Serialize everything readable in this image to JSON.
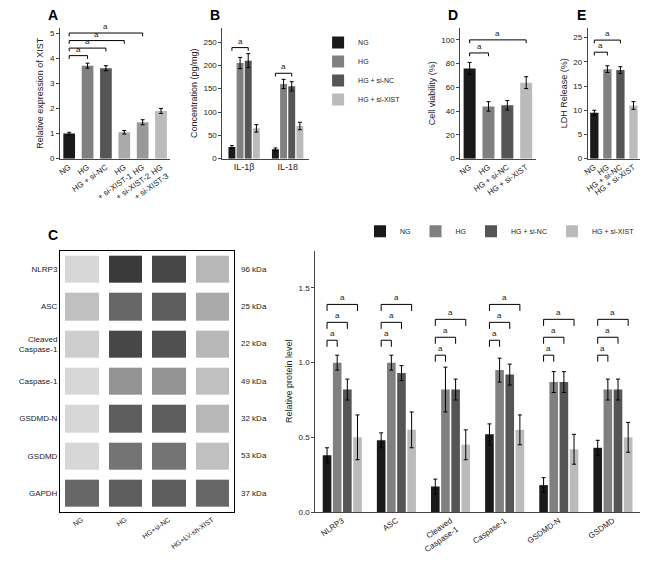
{
  "chart_data": [
    {
      "type": "bar",
      "title": "A",
      "ylabel": "Relative expression of XIST",
      "categories": [
        "NG",
        "HG",
        "HG + si-NC",
        "HG\n+ si-XIST-1",
        "HG\n+ si-XIST-2",
        "HG\n+ si-XIST-3"
      ],
      "values": [
        1.0,
        3.7,
        3.6,
        1.05,
        1.45,
        1.9
      ],
      "errors": [
        0.05,
        0.1,
        0.1,
        0.07,
        0.1,
        0.1
      ],
      "colors": [
        "#1a1a1a",
        "#808080",
        "#555555",
        "#aaaaaa",
        "#999999",
        "#bbbbbb"
      ],
      "ylim": [
        0,
        5.2
      ],
      "yticks": [
        0,
        1,
        2,
        3,
        4,
        5
      ],
      "grid": false,
      "brackets": [
        {
          "x1": 0,
          "x2": 1,
          "y": 4.1,
          "label": "a"
        },
        {
          "x1": 0,
          "x2": 2,
          "y": 4.4,
          "label": "a"
        },
        {
          "x1": 0,
          "x2": 3,
          "y": 4.7,
          "label": "a"
        },
        {
          "x1": 0,
          "x2": 4,
          "y": 5.0,
          "label": "a"
        }
      ]
    },
    {
      "type": "bar",
      "title": "B",
      "ylabel": "Concentration (pg/mg)",
      "categories": [
        "IL-1β",
        "IL-18"
      ],
      "series": [
        {
          "name": "NG",
          "color": "#1a1a1a",
          "values": [
            25,
            20
          ],
          "errors": [
            3,
            3
          ]
        },
        {
          "name": "HG",
          "color": "#808080",
          "values": [
            205,
            160
          ],
          "errors": [
            12,
            10
          ]
        },
        {
          "name": "HG + si-NC",
          "color": "#555555",
          "values": [
            210,
            155
          ],
          "errors": [
            15,
            10
          ]
        },
        {
          "name": "HG + si-XIST",
          "color": "#bbbbbb",
          "values": [
            65,
            70
          ],
          "errors": [
            8,
            8
          ]
        }
      ],
      "ylim": [
        0,
        280
      ],
      "yticks": [
        0,
        50,
        100,
        150,
        200,
        250
      ],
      "grid": false,
      "legend": "right",
      "brackets": [
        {
          "category": 0,
          "pairs": [
            [
              0,
              2
            ]
          ],
          "ys": [
            238
          ],
          "labels": [
            "a"
          ]
        },
        {
          "category": 1,
          "pairs": [
            [
              0,
              2
            ]
          ],
          "ys": [
            183
          ],
          "labels": [
            "a"
          ]
        }
      ]
    },
    {
      "type": "bar",
      "title": "D",
      "ylabel": "Cell viability (%)",
      "categories": [
        "NG",
        "HG",
        "HG + si-NC",
        "HG + si-XIST"
      ],
      "values": [
        76,
        44,
        45,
        64
      ],
      "errors": [
        5,
        4,
        4,
        5
      ],
      "colors": [
        "#1a1a1a",
        "#808080",
        "#555555",
        "#bbbbbb"
      ],
      "ylim": [
        0,
        110
      ],
      "yticks": [
        0,
        20,
        40,
        60,
        80,
        100
      ],
      "grid": false,
      "brackets": [
        {
          "x1": 0,
          "x2": 1,
          "y": 89,
          "label": "a"
        },
        {
          "x1": 0,
          "x2": 3,
          "y": 100,
          "label": "a"
        }
      ]
    },
    {
      "type": "bar",
      "title": "E",
      "ylabel": "LDH Release (%)",
      "categories": [
        "NG",
        "HG",
        "HG + si-NC",
        "HG + si-XIST"
      ],
      "values": [
        9.5,
        18.5,
        18.3,
        11.0
      ],
      "errors": [
        0.5,
        0.7,
        0.7,
        0.8
      ],
      "colors": [
        "#1a1a1a",
        "#808080",
        "#555555",
        "#bbbbbb"
      ],
      "ylim": [
        0,
        27
      ],
      "yticks": [
        0,
        5,
        10,
        15,
        20,
        25
      ],
      "grid": false,
      "brackets": [
        {
          "x1": 0,
          "x2": 1,
          "y": 22,
          "label": "a"
        },
        {
          "x1": 0,
          "x2": 2,
          "y": 24.5,
          "label": "a"
        }
      ]
    },
    {
      "type": "heatmap",
      "title": "C",
      "categories": [
        "NG",
        "HG",
        "HG+si-NC",
        "HG+LV-sh-XIST"
      ],
      "rows": [
        "NLRP3",
        "ASC",
        "Cleaved\nCaspase-1",
        "Caspase-1",
        "GSDMD-N",
        "GSDMD",
        "GAPDH"
      ],
      "kDa": [
        "96 kDa",
        "25 kDa",
        "22 kDa",
        "49 kDa",
        "32 kDa",
        "53 kDa",
        "37 kDa"
      ],
      "cells": [
        [
          0.18,
          0.88,
          0.82,
          0.32
        ],
        [
          0.28,
          0.68,
          0.72,
          0.38
        ],
        [
          0.22,
          0.82,
          0.78,
          0.32
        ],
        [
          0.18,
          0.48,
          0.48,
          0.28
        ],
        [
          0.18,
          0.72,
          0.72,
          0.32
        ],
        [
          0.18,
          0.62,
          0.62,
          0.28
        ],
        [
          0.68,
          0.72,
          0.72,
          0.68
        ]
      ],
      "zlim": [
        0,
        1
      ],
      "grid": false
    },
    {
      "type": "bar",
      "ylabel": "Relative protein level",
      "categories": [
        "NLRP3",
        "ASC",
        "Cleaved\nCaspase-1",
        "Caspase-1",
        "GSDMD-N",
        "GSDMD"
      ],
      "series": [
        {
          "name": "NG",
          "color": "#1a1a1a",
          "values": [
            0.38,
            0.48,
            0.17,
            0.52,
            0.18,
            0.43
          ],
          "errors": [
            0.05,
            0.05,
            0.05,
            0.07,
            0.05,
            0.05
          ]
        },
        {
          "name": "HG",
          "color": "#808080",
          "values": [
            1.0,
            1.0,
            0.82,
            0.95,
            0.87,
            0.82
          ],
          "errors": [
            0.05,
            0.05,
            0.15,
            0.08,
            0.07,
            0.07
          ]
        },
        {
          "name": "HG + si-NC",
          "color": "#555555",
          "values": [
            0.82,
            0.93,
            0.82,
            0.92,
            0.87,
            0.82
          ],
          "errors": [
            0.07,
            0.05,
            0.07,
            0.07,
            0.07,
            0.07
          ]
        },
        {
          "name": "HG + si-XIST",
          "color": "#bbbbbb",
          "values": [
            0.5,
            0.55,
            0.45,
            0.55,
            0.42,
            0.5
          ],
          "errors": [
            0.15,
            0.12,
            0.1,
            0.1,
            0.1,
            0.1
          ]
        }
      ],
      "ylim": [
        0,
        1.75
      ],
      "yticks": [
        {
          "value": 0.0,
          "label": "0.0"
        },
        0.5,
        {
          "value": 1.0,
          "label": "1.0"
        },
        1.5
      ],
      "grid": false,
      "legend": "upper right",
      "brackets": [
        {
          "category": 0,
          "pairs": [
            [
              0,
              1
            ],
            [
              0,
              2
            ],
            [
              0,
              3
            ]
          ],
          "ys": [
            1.15,
            1.27,
            1.39
          ],
          "labels": [
            "a",
            "a",
            "a"
          ]
        },
        {
          "category": 1,
          "pairs": [
            [
              0,
              1
            ],
            [
              0,
              2
            ],
            [
              0,
              3
            ]
          ],
          "ys": [
            1.15,
            1.27,
            1.39
          ],
          "labels": [
            "a",
            "a",
            "a"
          ]
        },
        {
          "category": 2,
          "pairs": [
            [
              0,
              1
            ],
            [
              0,
              2
            ],
            [
              0,
              3
            ]
          ],
          "ys": [
            1.05,
            1.17,
            1.29
          ],
          "labels": [
            "a",
            "a",
            "a"
          ]
        },
        {
          "category": 3,
          "pairs": [
            [
              0,
              1
            ],
            [
              0,
              2
            ],
            [
              0,
              3
            ]
          ],
          "ys": [
            1.15,
            1.27,
            1.39
          ],
          "labels": [
            "a",
            "a",
            "a"
          ]
        },
        {
          "category": 4,
          "pairs": [
            [
              0,
              1
            ],
            [
              0,
              2
            ],
            [
              0,
              3
            ]
          ],
          "ys": [
            1.05,
            1.17,
            1.29
          ],
          "labels": [
            "a",
            "a",
            "a"
          ]
        },
        {
          "category": 5,
          "pairs": [
            [
              0,
              1
            ],
            [
              0,
              2
            ],
            [
              0,
              3
            ]
          ],
          "ys": [
            1.05,
            1.17,
            1.29
          ],
          "labels": [
            "a",
            "a",
            "a"
          ]
        }
      ]
    }
  ]
}
